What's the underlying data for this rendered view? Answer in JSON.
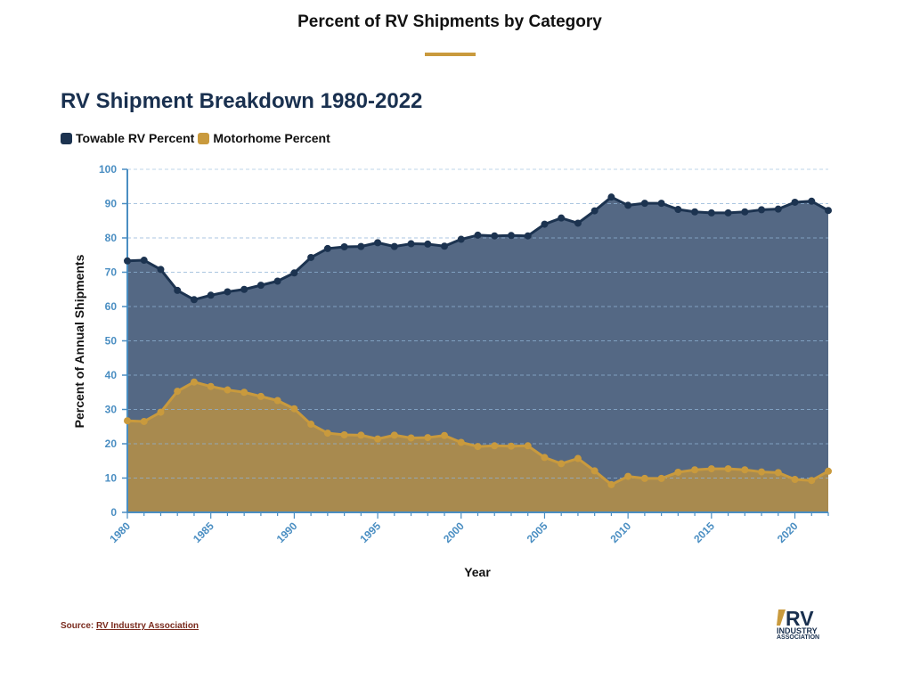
{
  "page_title": "Percent of RV Shipments by Category",
  "chart_heading": "RV Shipment Breakdown 1980-2022",
  "legend": [
    {
      "label": "Towable RV Percent",
      "color": "#1c3350"
    },
    {
      "label": "Motorhome Percent",
      "color": "#c99a3d"
    }
  ],
  "source": {
    "prefix": "Source: ",
    "link_text": "RV Industry Association"
  },
  "logo": {
    "mark": "RV",
    "line1": "INDUSTRY",
    "line2": "ASSOCIATION"
  },
  "chart_data": {
    "type": "area",
    "xlabel": "Year",
    "ylabel": "Percent of Annual Shipments",
    "xlim": [
      1980,
      2022
    ],
    "ylim": [
      0,
      100
    ],
    "x_ticks": [
      1980,
      1985,
      1990,
      1995,
      2000,
      2005,
      2010,
      2015,
      2020
    ],
    "y_ticks": [
      0,
      10,
      20,
      30,
      40,
      50,
      60,
      70,
      80,
      90,
      100
    ],
    "grid": true,
    "legend_position": "top-left",
    "x": [
      1980,
      1981,
      1982,
      1983,
      1984,
      1985,
      1986,
      1987,
      1988,
      1989,
      1990,
      1991,
      1992,
      1993,
      1994,
      1995,
      1996,
      1997,
      1998,
      1999,
      2000,
      2001,
      2002,
      2003,
      2004,
      2005,
      2006,
      2007,
      2008,
      2009,
      2010,
      2011,
      2012,
      2013,
      2014,
      2015,
      2016,
      2017,
      2018,
      2019,
      2020,
      2021,
      2022
    ],
    "series": [
      {
        "name": "Towable RV Percent",
        "color": "#1c3350",
        "fill": "#546884",
        "values": [
          73.3,
          73.5,
          70.8,
          64.7,
          62.0,
          63.3,
          64.3,
          65.0,
          66.2,
          67.4,
          69.8,
          74.3,
          76.9,
          77.4,
          77.5,
          78.6,
          77.5,
          78.3,
          78.2,
          77.6,
          79.6,
          80.8,
          80.6,
          80.7,
          80.6,
          84.0,
          85.8,
          84.3,
          87.9,
          91.9,
          89.5,
          90.1,
          90.1,
          88.3,
          87.6,
          87.3,
          87.3,
          87.6,
          88.2,
          88.4,
          90.4,
          90.7,
          88.0
        ]
      },
      {
        "name": "Motorhome Percent",
        "color": "#c99a3d",
        "fill": "#a88a4f",
        "values": [
          26.7,
          26.5,
          29.2,
          35.3,
          38.0,
          36.7,
          35.7,
          35.0,
          33.8,
          32.6,
          30.2,
          25.7,
          23.1,
          22.6,
          22.5,
          21.4,
          22.5,
          21.7,
          21.8,
          22.4,
          20.4,
          19.2,
          19.4,
          19.3,
          19.4,
          16.0,
          14.2,
          15.7,
          12.1,
          8.1,
          10.5,
          9.9,
          9.9,
          11.7,
          12.4,
          12.7,
          12.7,
          12.4,
          11.8,
          11.6,
          9.6,
          9.3,
          12.0
        ]
      }
    ]
  }
}
